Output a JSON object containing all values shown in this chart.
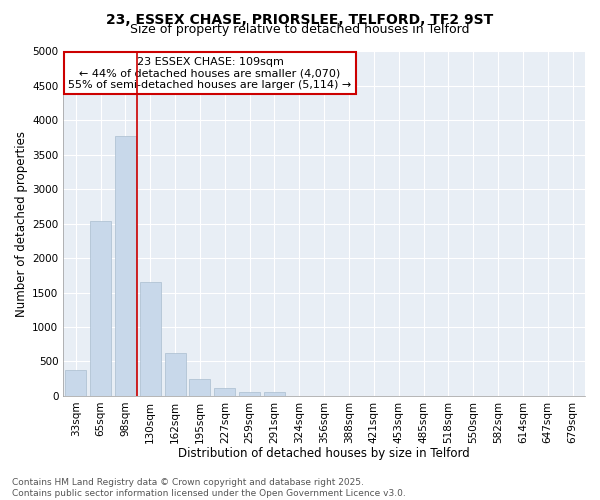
{
  "title_line1": "23, ESSEX CHASE, PRIORSLEE, TELFORD, TF2 9ST",
  "title_line2": "Size of property relative to detached houses in Telford",
  "xlabel": "Distribution of detached houses by size in Telford",
  "ylabel": "Number of detached properties",
  "categories": [
    "33sqm",
    "65sqm",
    "98sqm",
    "130sqm",
    "162sqm",
    "195sqm",
    "227sqm",
    "259sqm",
    "291sqm",
    "324sqm",
    "356sqm",
    "388sqm",
    "421sqm",
    "453sqm",
    "485sqm",
    "518sqm",
    "550sqm",
    "582sqm",
    "614sqm",
    "647sqm",
    "679sqm"
  ],
  "values": [
    370,
    2540,
    3780,
    1650,
    620,
    240,
    110,
    60,
    50,
    0,
    0,
    0,
    0,
    0,
    0,
    0,
    0,
    0,
    0,
    0,
    0
  ],
  "bar_color": "#c8d8ea",
  "bar_edgecolor": "#aabdcf",
  "vline_color": "#cc0000",
  "annotation_text": "23 ESSEX CHASE: 109sqm\n← 44% of detached houses are smaller (4,070)\n55% of semi-detached houses are larger (5,114) →",
  "annotation_box_facecolor": "#ffffff",
  "annotation_box_edgecolor": "#cc0000",
  "ylim": [
    0,
    5000
  ],
  "yticks": [
    0,
    500,
    1000,
    1500,
    2000,
    2500,
    3000,
    3500,
    4000,
    4500,
    5000
  ],
  "figure_bg": "#ffffff",
  "plot_bg": "#e8eef5",
  "grid_color": "#ffffff",
  "footer_text": "Contains HM Land Registry data © Crown copyright and database right 2025.\nContains public sector information licensed under the Open Government Licence v3.0.",
  "title_fontsize": 10,
  "subtitle_fontsize": 9,
  "axis_label_fontsize": 8.5,
  "tick_fontsize": 7.5,
  "annotation_fontsize": 8,
  "footer_fontsize": 6.5
}
